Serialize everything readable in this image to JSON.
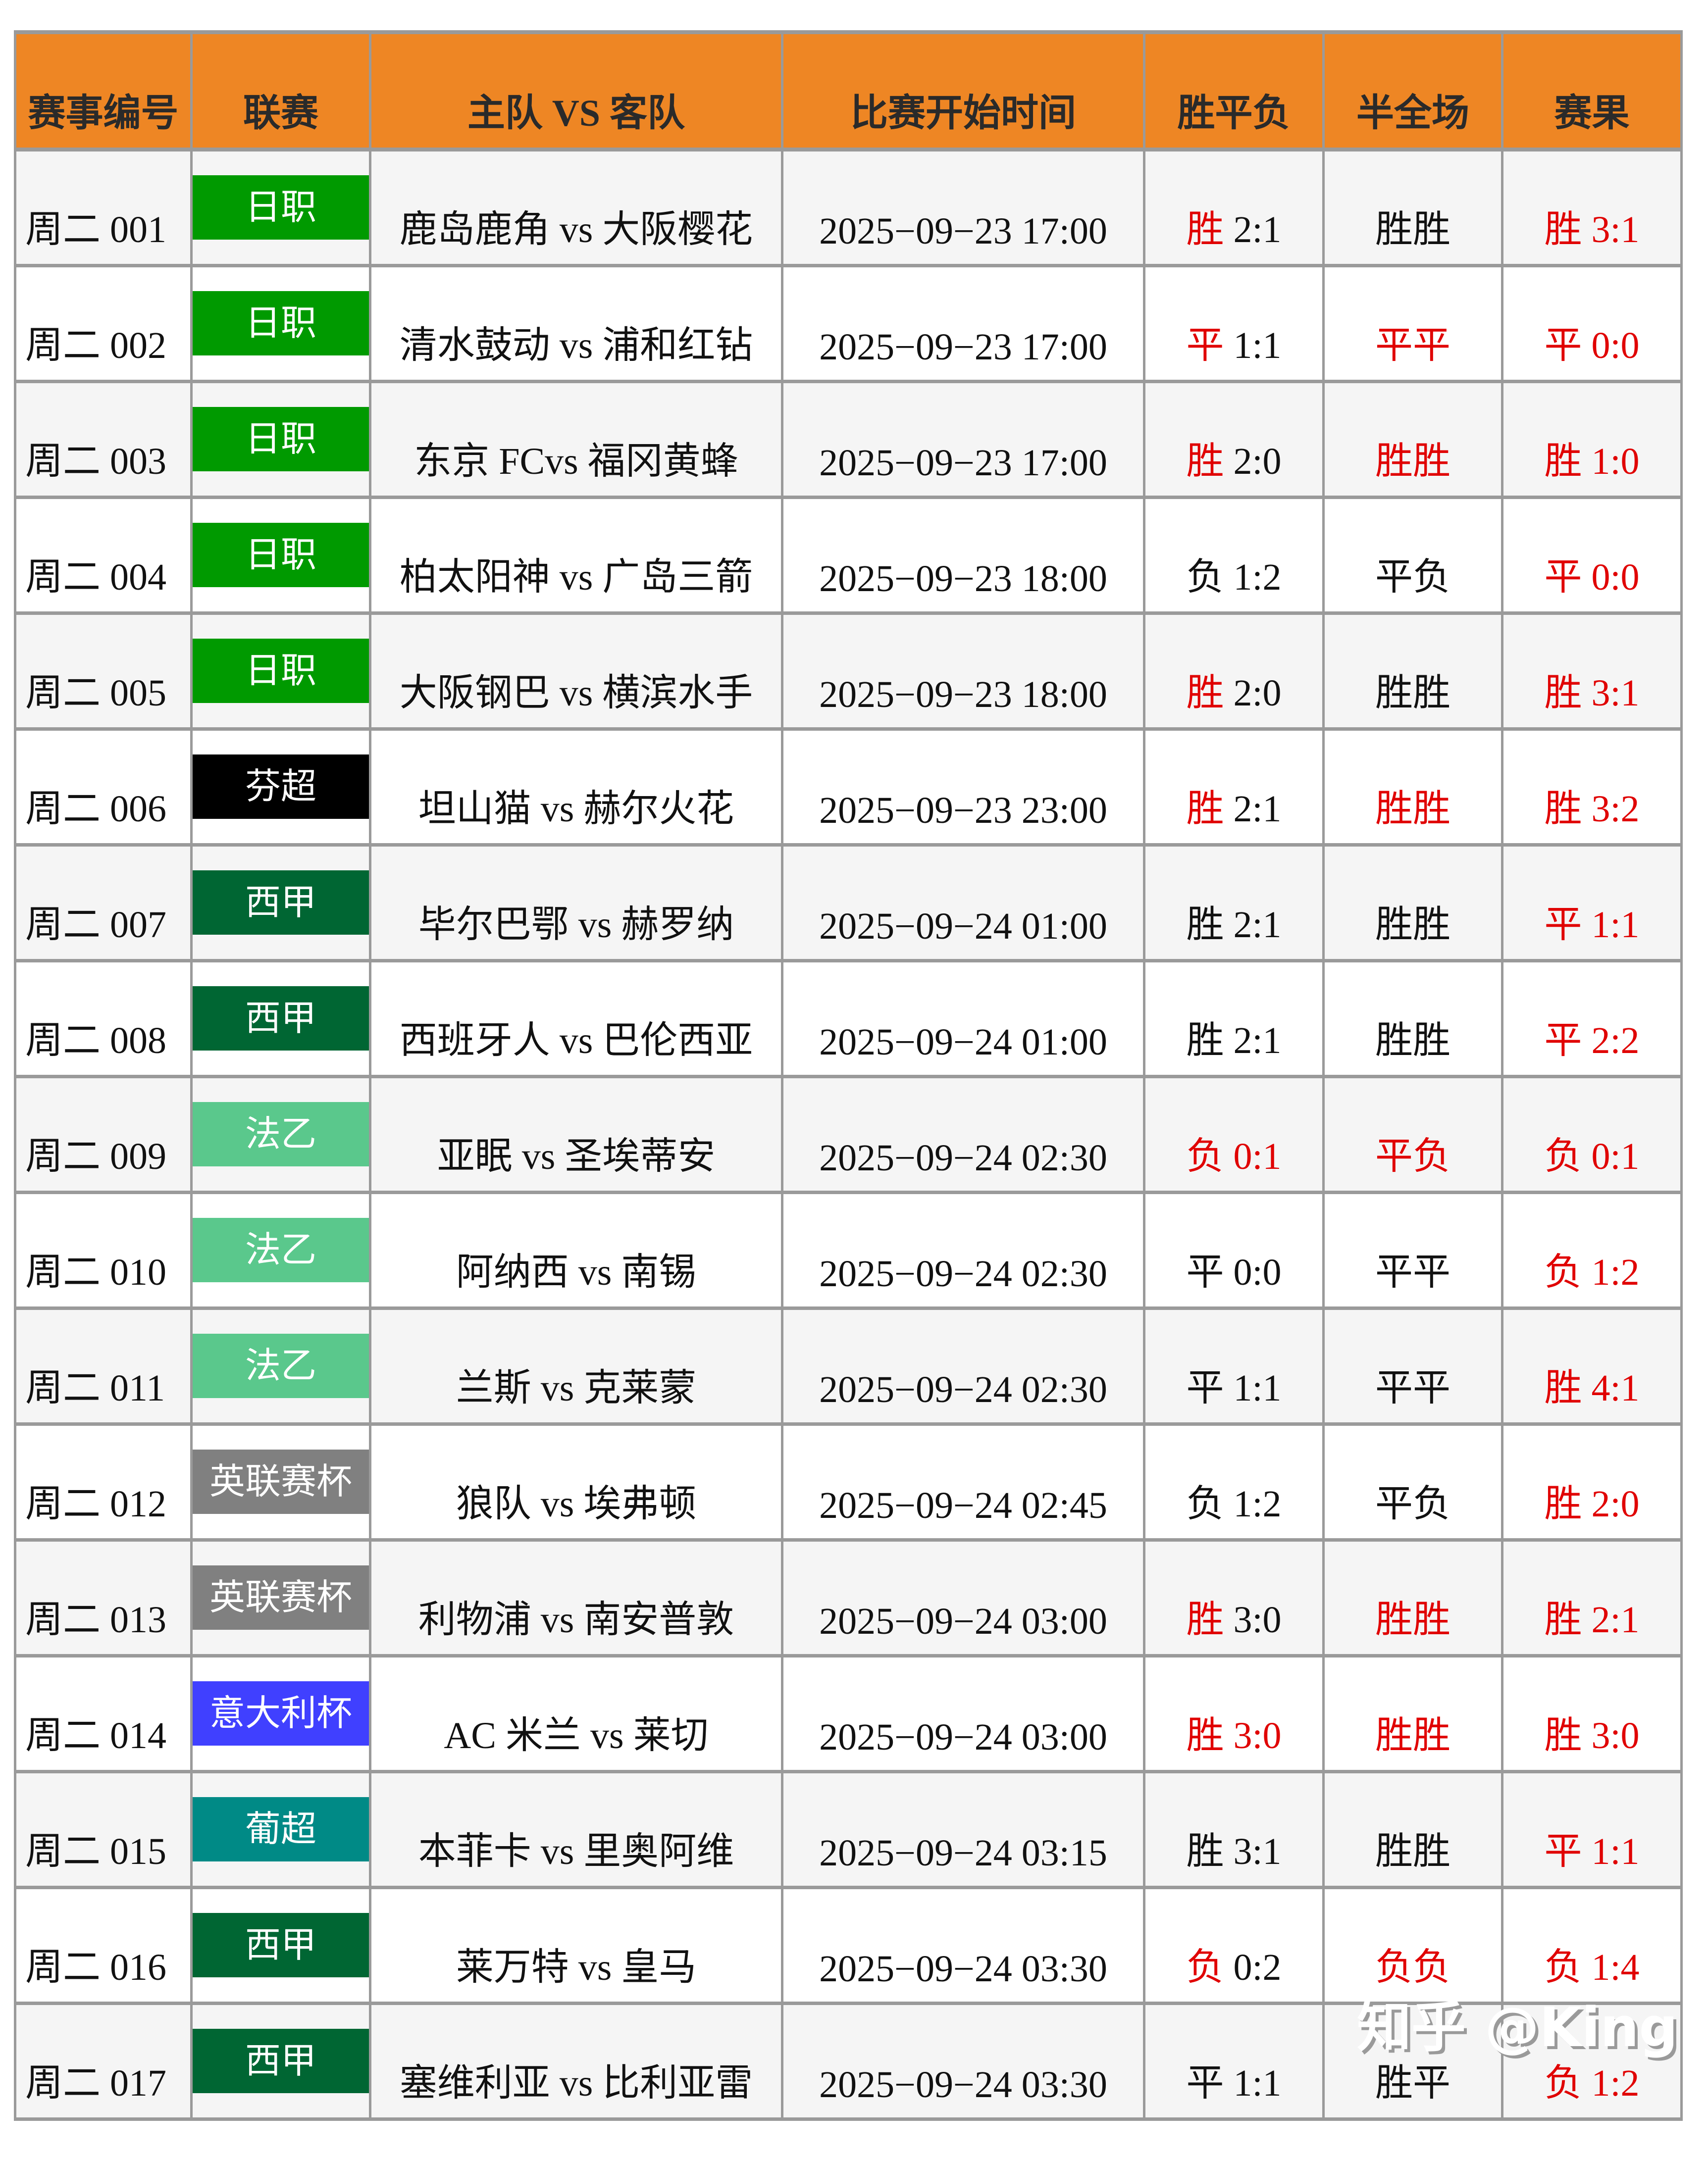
{
  "header": {
    "columns": [
      "赛事编号",
      "联赛",
      "主队 VS 客队",
      "比赛开始时间",
      "胜平负",
      "半全场",
      "赛果"
    ]
  },
  "league_colors": {
    "日职": "#009a00",
    "芬超": "#000000",
    "西甲": "#006633",
    "法乙": "#5ac88c",
    "英联赛杯": "#808080",
    "意大利杯": "#4040ff",
    "葡超": "#008a86"
  },
  "highlight_color": "#e00000",
  "rows": [
    {
      "id": "周二 001",
      "league": "日职",
      "match": "鹿岛鹿角 vs 大阪樱花",
      "time": "2025−09−23 17:00",
      "spf": {
        "outcome": "胜",
        "score": "2:1",
        "hit": "outcome"
      },
      "bqc": {
        "text": "胜胜",
        "hit": false
      },
      "result": {
        "outcome": "胜",
        "score": "3:1"
      }
    },
    {
      "id": "周二 002",
      "league": "日职",
      "match": "清水鼓动 vs 浦和红钻",
      "time": "2025−09−23 17:00",
      "spf": {
        "outcome": "平",
        "score": "1:1",
        "hit": "outcome"
      },
      "bqc": {
        "text": "平平",
        "hit": true
      },
      "result": {
        "outcome": "平",
        "score": "0:0"
      }
    },
    {
      "id": "周二 003",
      "league": "日职",
      "match": "东京 FCvs 福冈黄蜂",
      "time": "2025−09−23 17:00",
      "spf": {
        "outcome": "胜",
        "score": "2:0",
        "hit": "outcome"
      },
      "bqc": {
        "text": "胜胜",
        "hit": true
      },
      "result": {
        "outcome": "胜",
        "score": "1:0"
      }
    },
    {
      "id": "周二 004",
      "league": "日职",
      "match": "柏太阳神 vs 广岛三箭",
      "time": "2025−09−23 18:00",
      "spf": {
        "outcome": "负",
        "score": "1:2",
        "hit": "none"
      },
      "bqc": {
        "text": "平负",
        "hit": false
      },
      "result": {
        "outcome": "平",
        "score": "0:0"
      }
    },
    {
      "id": "周二 005",
      "league": "日职",
      "match": "大阪钢巴 vs 横滨水手",
      "time": "2025−09−23 18:00",
      "spf": {
        "outcome": "胜",
        "score": "2:0",
        "hit": "outcome"
      },
      "bqc": {
        "text": "胜胜",
        "hit": false
      },
      "result": {
        "outcome": "胜",
        "score": "3:1"
      }
    },
    {
      "id": "周二 006",
      "league": "芬超",
      "match": "坦山猫 vs 赫尔火花",
      "time": "2025−09−23 23:00",
      "spf": {
        "outcome": "胜",
        "score": "2:1",
        "hit": "outcome"
      },
      "bqc": {
        "text": "胜胜",
        "hit": true
      },
      "result": {
        "outcome": "胜",
        "score": "3:2"
      }
    },
    {
      "id": "周二 007",
      "league": "西甲",
      "match": "毕尔巴鄂 vs 赫罗纳",
      "time": "2025−09−24 01:00",
      "spf": {
        "outcome": "胜",
        "score": "2:1",
        "hit": "none"
      },
      "bqc": {
        "text": "胜胜",
        "hit": false
      },
      "result": {
        "outcome": "平",
        "score": "1:1"
      }
    },
    {
      "id": "周二 008",
      "league": "西甲",
      "match": "西班牙人 vs 巴伦西亚",
      "time": "2025−09−24 01:00",
      "spf": {
        "outcome": "胜",
        "score": "2:1",
        "hit": "none"
      },
      "bqc": {
        "text": "胜胜",
        "hit": false
      },
      "result": {
        "outcome": "平",
        "score": "2:2"
      }
    },
    {
      "id": "周二 009",
      "league": "法乙",
      "match": "亚眠 vs 圣埃蒂安",
      "time": "2025−09−24 02:30",
      "spf": {
        "outcome": "负",
        "score": "0:1",
        "hit": "all"
      },
      "bqc": {
        "text": "平负",
        "hit": true
      },
      "result": {
        "outcome": "负",
        "score": "0:1"
      }
    },
    {
      "id": "周二 010",
      "league": "法乙",
      "match": "阿纳西 vs 南锡",
      "time": "2025−09−24 02:30",
      "spf": {
        "outcome": "平",
        "score": "0:0",
        "hit": "none"
      },
      "bqc": {
        "text": "平平",
        "hit": false
      },
      "result": {
        "outcome": "负",
        "score": "1:2"
      }
    },
    {
      "id": "周二 011",
      "league": "法乙",
      "match": "兰斯 vs 克莱蒙",
      "time": "2025−09−24 02:30",
      "spf": {
        "outcome": "平",
        "score": "1:1",
        "hit": "none"
      },
      "bqc": {
        "text": "平平",
        "hit": false
      },
      "result": {
        "outcome": "胜",
        "score": "4:1"
      }
    },
    {
      "id": "周二 012",
      "league": "英联赛杯",
      "match": "狼队 vs 埃弗顿",
      "time": "2025−09−24 02:45",
      "spf": {
        "outcome": "负",
        "score": "1:2",
        "hit": "none"
      },
      "bqc": {
        "text": "平负",
        "hit": false
      },
      "result": {
        "outcome": "胜",
        "score": "2:0"
      }
    },
    {
      "id": "周二 013",
      "league": "英联赛杯",
      "match": "利物浦 vs 南安普敦",
      "time": "2025−09−24 03:00",
      "spf": {
        "outcome": "胜",
        "score": "3:0",
        "hit": "outcome"
      },
      "bqc": {
        "text": "胜胜",
        "hit": true
      },
      "result": {
        "outcome": "胜",
        "score": "2:1"
      }
    },
    {
      "id": "周二 014",
      "league": "意大利杯",
      "match": "AC 米兰 vs 莱切",
      "time": "2025−09−24 03:00",
      "spf": {
        "outcome": "胜",
        "score": "3:0",
        "hit": "all"
      },
      "bqc": {
        "text": "胜胜",
        "hit": true
      },
      "result": {
        "outcome": "胜",
        "score": "3:0"
      }
    },
    {
      "id": "周二 015",
      "league": "葡超",
      "match": "本菲卡 vs 里奥阿维",
      "time": "2025−09−24 03:15",
      "spf": {
        "outcome": "胜",
        "score": "3:1",
        "hit": "none"
      },
      "bqc": {
        "text": "胜胜",
        "hit": false
      },
      "result": {
        "outcome": "平",
        "score": "1:1"
      }
    },
    {
      "id": "周二 016",
      "league": "西甲",
      "match": "莱万特 vs 皇马",
      "time": "2025−09−24 03:30",
      "spf": {
        "outcome": "负",
        "score": "0:2",
        "hit": "outcome"
      },
      "bqc": {
        "text": "负负",
        "hit": true
      },
      "result": {
        "outcome": "负",
        "score": "1:4"
      }
    },
    {
      "id": "周二 017",
      "league": "西甲",
      "match": "塞维利亚 vs 比利亚雷",
      "time": "2025−09−24 03:30",
      "spf": {
        "outcome": "平",
        "score": "1:1",
        "hit": "none"
      },
      "bqc": {
        "text": "胜平",
        "hit": false
      },
      "result": {
        "outcome": "负",
        "score": "1:2"
      }
    }
  ],
  "watermark": "知乎 @King"
}
